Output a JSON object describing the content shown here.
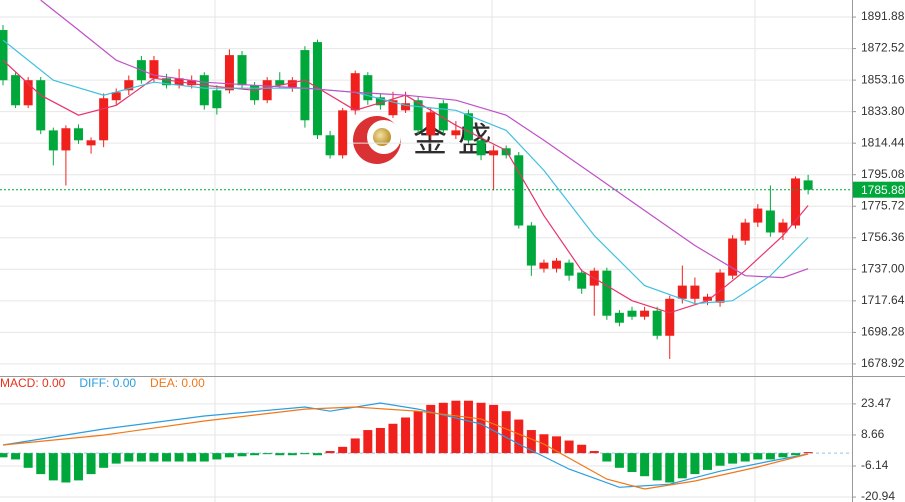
{
  "chart_data": [
    {
      "type": "candlestick",
      "up_color": "#f0201c",
      "down_color": "#00a83c",
      "open": [
        1883.9,
        1856.2,
        1837.7,
        1853.1,
        1822.3,
        1810,
        1823.6,
        1813.1,
        1816.2,
        1840.8,
        1846.9,
        1865.4,
        1854.3,
        1854.3,
        1850,
        1850,
        1856.2,
        1846.9,
        1846.9,
        1868.5,
        1850,
        1840.8,
        1853.1,
        1848.8,
        1871.6,
        1876.5,
        1819.3,
        1807,
        1834.6,
        1856.2,
        1842.6,
        1831.6,
        1834.6,
        1840.8,
        1819.3,
        1838.95,
        1819.3,
        1832.8,
        1816.2,
        1807,
        1811.3,
        1807,
        1763.9,
        1737.4,
        1737.4,
        1741.1,
        1735,
        1727,
        1736.2,
        1710.3,
        1711.6,
        1707.9,
        1711.6,
        1696.2,
        1718.9,
        1718.9,
        1717.7,
        1716.5,
        1733.1,
        1754.6,
        1765.7,
        1773.1,
        1759.6,
        1763.9,
        1791.6
      ],
      "high": [
        1887,
        1858,
        1855,
        1855,
        1824,
        1825.4,
        1826,
        1818,
        1845,
        1848,
        1856,
        1868,
        1868,
        1857,
        1860,
        1856,
        1858,
        1850,
        1872,
        1871,
        1852,
        1855,
        1858,
        1855,
        1874,
        1878,
        1822,
        1836,
        1859,
        1858,
        1845,
        1846,
        1846,
        1843,
        1836,
        1841,
        1828,
        1835,
        1818,
        1813.1,
        1813,
        1809,
        1766,
        1743,
        1744,
        1743,
        1737,
        1738,
        1738,
        1712,
        1714,
        1714,
        1714,
        1720.8,
        1739.3,
        1732,
        1722,
        1737,
        1758,
        1768,
        1777,
        1788.5,
        1768,
        1794,
        1795
      ],
      "low": [
        1850,
        1836,
        1836,
        1820,
        1800.8,
        1788.5,
        1814,
        1808,
        1812,
        1838,
        1844,
        1851,
        1852,
        1848,
        1848,
        1848,
        1835,
        1832,
        1845,
        1848,
        1838,
        1839,
        1848,
        1846,
        1824,
        1817,
        1805,
        1805,
        1832,
        1838,
        1835,
        1830,
        1833,
        1820,
        1817,
        1820,
        1817,
        1814,
        1804,
        1785.4,
        1805,
        1762,
        1733,
        1735,
        1735,
        1730,
        1722,
        1708.5,
        1706,
        1702,
        1706,
        1706,
        1694,
        1682,
        1716,
        1716,
        1715,
        1714,
        1731,
        1752,
        1763,
        1757,
        1755,
        1762,
        1783
      ],
      "close": [
        1853.1,
        1837.7,
        1853.1,
        1822.3,
        1810,
        1823.6,
        1816.2,
        1816.2,
        1842,
        1845.7,
        1853.1,
        1853.1,
        1865.4,
        1850,
        1854.3,
        1853.1,
        1837.7,
        1835.9,
        1868.5,
        1850,
        1840.8,
        1853.1,
        1850,
        1853.1,
        1828.5,
        1819.3,
        1807,
        1834.6,
        1857.4,
        1840.8,
        1837.7,
        1840.8,
        1838.95,
        1822.3,
        1833.4,
        1822.3,
        1822.3,
        1816.2,
        1807,
        1810,
        1807,
        1763.9,
        1739.3,
        1741.1,
        1742.3,
        1733.1,
        1725.1,
        1736.2,
        1708.5,
        1704.2,
        1707.9,
        1711.6,
        1696.2,
        1718.9,
        1727,
        1727,
        1720.2,
        1735,
        1755.9,
        1765.7,
        1774.3,
        1759.6,
        1765.7,
        1792.8,
        1785.88
      ],
      "lines": [
        {
          "color": "#e8336a",
          "x": [
            0,
            3,
            6,
            9,
            12,
            16,
            20,
            24,
            28,
            32,
            36,
            40,
            43,
            46,
            50,
            53,
            56,
            59,
            62,
            64
          ],
          "values": [
            1865.4,
            1843.9,
            1831.6,
            1837.7,
            1854.3,
            1850,
            1846.9,
            1853.1,
            1834.6,
            1843.9,
            1825.4,
            1810,
            1770,
            1736.2,
            1717.7,
            1710.3,
            1717.7,
            1736.2,
            1757.7,
            1776.2
          ]
        },
        {
          "color": "#3fc0e0",
          "x": [
            0,
            4,
            8,
            12,
            16,
            20,
            24,
            28,
            32,
            36,
            40,
            43,
            47,
            51,
            55,
            58,
            61,
            64
          ],
          "values": [
            1877.7,
            1853.1,
            1843.9,
            1851.9,
            1848.2,
            1848.2,
            1848.2,
            1845.7,
            1837.7,
            1834.6,
            1822.3,
            1797.7,
            1757.7,
            1727,
            1715.9,
            1717.7,
            1733.1,
            1756.5
          ]
        },
        {
          "color": "#c050c8",
          "x": [
            3,
            6,
            9,
            12,
            16,
            20,
            24,
            28,
            32,
            36,
            40,
            43,
            47,
            51,
            55,
            59,
            62,
            64
          ],
          "values": [
            1902.3,
            1883.9,
            1865.4,
            1856.2,
            1851.9,
            1850,
            1848.2,
            1845.7,
            1843.9,
            1840.8,
            1831.6,
            1816.2,
            1794.7,
            1773.1,
            1751.6,
            1733.1,
            1731.9,
            1737.4
          ]
        }
      ],
      "current_price": 1785.88,
      "current_color": "#00a83c",
      "ylim": [
        1671.5,
        1902.34
      ],
      "yticks": [
        1891.88,
        1872.52,
        1853.16,
        {
          "value": 1833.8,
          "label": "1833.80"
        },
        1814.44,
        1795.08,
        1775.72,
        1756.36,
        {
          "value": 1737,
          "label": "1737.00"
        },
        1717.64,
        1698.28,
        1678.92
      ],
      "grid": true,
      "watermark": "金 盛"
    },
    {
      "type": "macd",
      "legend": [
        {
          "text": "MACD: 0.00",
          "color": "#e8301c"
        },
        {
          "text": "DIFF: 0.00",
          "color": "#2a9ee0"
        },
        {
          "text": "DEA: 0.00",
          "color": "#f07818"
        }
      ],
      "up_color": "#f0201c",
      "down_color": "#00a83c",
      "values": [
        -2,
        -3,
        -7,
        -10,
        -13,
        -14,
        -13,
        -10,
        -7,
        -5,
        -4,
        -4,
        -4,
        -4,
        -4,
        -4,
        -4,
        -3,
        -2,
        -1.5,
        -1,
        -0.5,
        -1,
        -1,
        -0.5,
        -1,
        1,
        3,
        7,
        11,
        12,
        14,
        17,
        20,
        23,
        24,
        25,
        25,
        24,
        23,
        20,
        16,
        11,
        9,
        8,
        6,
        4,
        1,
        -4,
        -7,
        -9,
        -11,
        -13,
        -14,
        -12,
        -10,
        -8,
        -6,
        -5,
        -4,
        -3,
        -3,
        -2,
        -1,
        0.5
      ],
      "lines": [
        {
          "color": "#2a9ee0",
          "x": [
            0,
            8,
            16,
            24,
            26,
            30,
            33,
            38,
            41,
            45,
            49,
            53,
            57,
            61,
            64
          ],
          "values": [
            3.9,
            11.5,
            17.7,
            22,
            20,
            23.9,
            21,
            13.9,
            4.3,
            -7.6,
            -16.3,
            -14.8,
            -8.6,
            -3.8,
            -0.4
          ]
        },
        {
          "color": "#f07818",
          "x": [
            0,
            8,
            16,
            24,
            28,
            33,
            38,
            43,
            48,
            51,
            55,
            60,
            64
          ],
          "values": [
            3.9,
            8.6,
            15.3,
            21,
            22,
            20,
            16.3,
            4.3,
            -12.4,
            -17.1,
            -13.3,
            -6.6,
            -0.4
          ]
        }
      ],
      "ylim": [
        -23.3,
        36.3
      ],
      "yticks": [
        23.47,
        8.66,
        -6.14,
        -20.94
      ],
      "grid": true
    }
  ]
}
